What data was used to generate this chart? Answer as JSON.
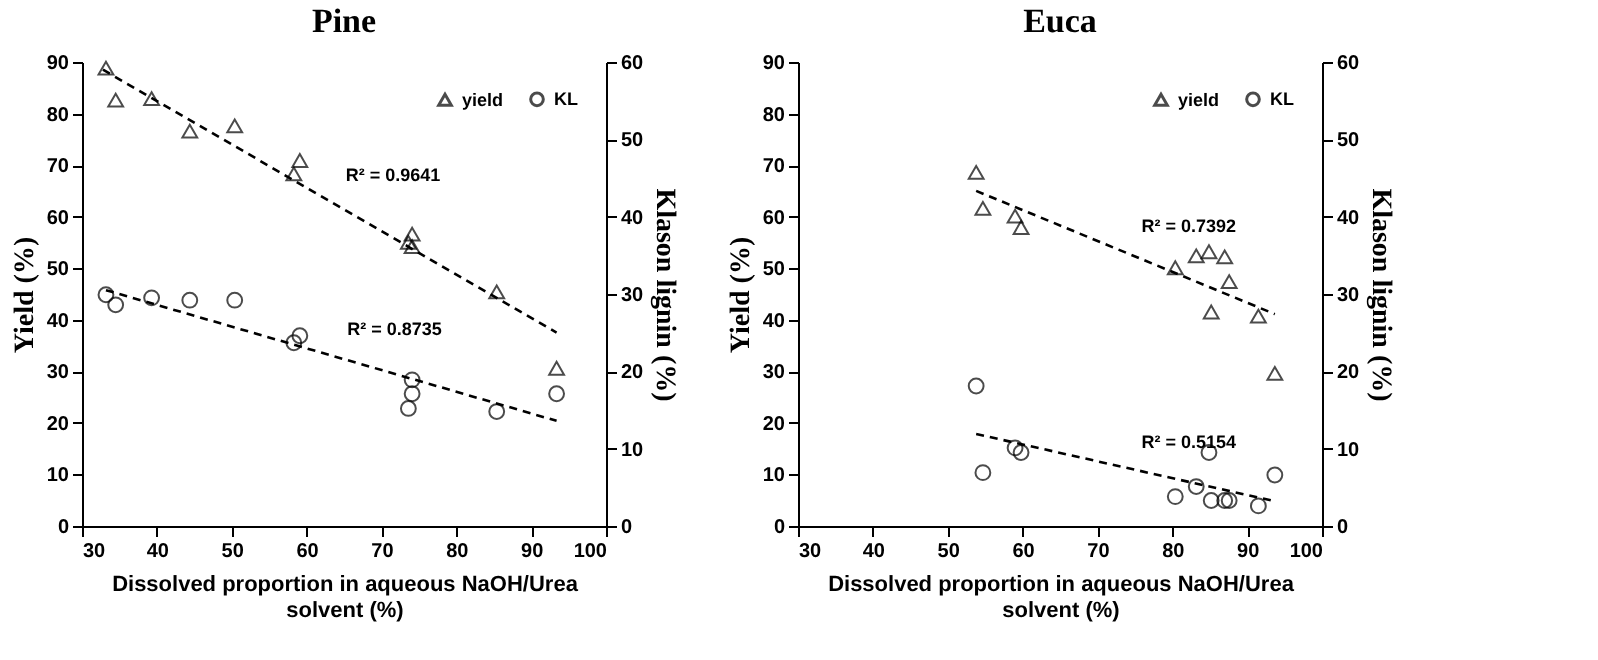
{
  "chart_data": [
    {
      "type": "scatter",
      "title": "Pine",
      "xlabel": "Dissolved proportion in aqueous NaOH/Urea solvent (%)",
      "ylabel": "Yield (%)",
      "y2label": "Klason lignin (%)",
      "xlim": [
        30,
        100
      ],
      "xticks": [
        30,
        40,
        50,
        60,
        70,
        80,
        90,
        100
      ],
      "ylim": [
        0,
        90
      ],
      "yticks": [
        0,
        10,
        20,
        30,
        40,
        50,
        60,
        70,
        80,
        90
      ],
      "y2lim": [
        0,
        60
      ],
      "y2ticks": [
        0,
        10,
        20,
        30,
        40,
        50,
        60
      ],
      "legend": "top right",
      "series": [
        {
          "name": "yield",
          "type": "scatter",
          "marker": "triangle",
          "color": "#000000",
          "x": [
            33.2,
            34.5,
            39.3,
            44.4,
            50.4,
            58.3,
            59.1,
            73.6,
            74.1,
            74.1,
            85.4,
            93.4
          ],
          "values": [
            88.8,
            82.6,
            82.9,
            76.6,
            77.6,
            68.3,
            70.9,
            55.0,
            56.6,
            54.2,
            45.4,
            30.6
          ]
        },
        {
          "name": "KL",
          "type": "scatter",
          "marker": "circle",
          "axis": "y2",
          "color": "#000000",
          "x": [
            33.2,
            34.5,
            39.3,
            44.4,
            50.4,
            58.3,
            59.1,
            73.6,
            74.1,
            74.1,
            85.4,
            93.4
          ],
          "values": [
            29.9,
            28.6,
            29.5,
            29.2,
            29.2,
            23.7,
            24.6,
            15.2,
            17.1,
            18.9,
            14.8,
            17.1
          ]
        },
        {
          "type": "line",
          "line_style": "dashed",
          "color": "#000000",
          "x": [
            32.8,
            93.4
          ],
          "values": [
            88.5,
            37.5
          ]
        },
        {
          "type": "line",
          "line_style": "dashed",
          "axis": "y2",
          "color": "#000000",
          "x": [
            33.2,
            93.4
          ],
          "values": [
            30.5,
            13.6
          ]
        }
      ],
      "annotations": [
        "R² = 0.9641",
        "R² = 0.8735"
      ]
    },
    {
      "type": "scatter",
      "title": "Euca",
      "xlabel": "Dissolved proportion in aqueous NaOH/Urea solvent (%)",
      "ylabel": "Yield (%)",
      "y2label": "Klason lignin (%)",
      "xlim": [
        30,
        100
      ],
      "xticks": [
        30,
        40,
        50,
        60,
        70,
        80,
        90,
        100
      ],
      "ylim": [
        0,
        90
      ],
      "yticks": [
        0,
        10,
        20,
        30,
        40,
        50,
        60,
        70,
        80,
        90
      ],
      "y2lim": [
        0,
        60
      ],
      "y2ticks": [
        0,
        10,
        20,
        30,
        40,
        50,
        60
      ],
      "legend": "top right",
      "series": [
        {
          "name": "yield",
          "type": "scatter",
          "marker": "triangle",
          "color": "#000000",
          "x": [
            53.8,
            54.7,
            59.0,
            59.8,
            80.4,
            83.2,
            84.9,
            85.2,
            87.0,
            87.6,
            91.5,
            93.7
          ],
          "values": [
            68.6,
            61.6,
            60.1,
            57.9,
            50.1,
            52.4,
            53.2,
            41.5,
            52.2,
            47.4,
            40.7,
            29.6
          ]
        },
        {
          "name": "KL",
          "type": "scatter",
          "marker": "circle",
          "axis": "y2",
          "color": "#000000",
          "x": [
            53.8,
            54.7,
            59.0,
            59.8,
            80.4,
            83.2,
            84.9,
            85.2,
            87.0,
            87.6,
            91.5,
            93.7
          ],
          "values": [
            18.1,
            6.9,
            10.1,
            9.5,
            3.8,
            5.1,
            9.5,
            3.3,
            3.3,
            3.3,
            2.6,
            6.6
          ]
        },
        {
          "type": "line",
          "line_style": "dashed",
          "color": "#000000",
          "x": [
            53.8,
            93.7
          ],
          "values": [
            65.0,
            41.1
          ]
        },
        {
          "type": "line",
          "line_style": "dashed",
          "axis": "y2",
          "color": "#000000",
          "x": [
            53.8,
            93.7
          ],
          "values": [
            11.9,
            3.2
          ]
        }
      ],
      "annotations": [
        "R² = 0.7392",
        "R² = 0.5154"
      ]
    }
  ]
}
